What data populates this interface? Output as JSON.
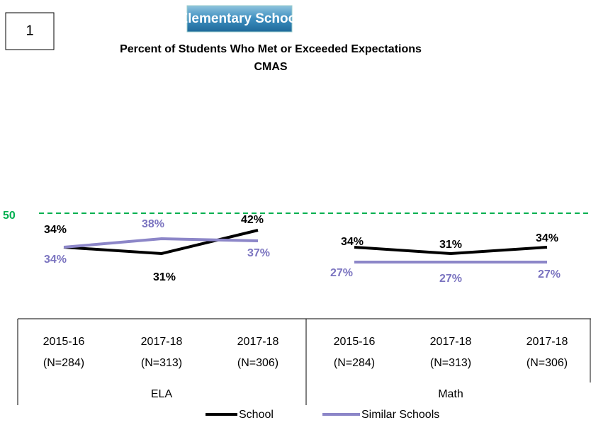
{
  "chart_data": {
    "type": "line",
    "badge": "1",
    "title": "Elementary School",
    "subtitle": "Percent of Students Who Met or Exceeded Expectations",
    "subtitle2": "CMAS",
    "ylim": [
      0,
      100
    ],
    "reference_line": {
      "value": 50,
      "label": "50",
      "color": "#00b050"
    },
    "groups": [
      {
        "name": "ELA",
        "categories": [
          [
            "2015-16",
            "(N=284)"
          ],
          [
            "2017-18",
            "(N=313)"
          ],
          [
            "2017-18",
            "(N=306)"
          ]
        ]
      },
      {
        "name": "Math",
        "categories": [
          [
            "2015-16",
            "(N=284)"
          ],
          [
            "2017-18",
            "(N=313)"
          ],
          [
            "2017-18",
            "(N=306)"
          ]
        ]
      }
    ],
    "series": [
      {
        "name": "School",
        "color": "#000000",
        "values": [
          [
            34,
            31,
            42
          ],
          [
            34,
            31,
            34
          ]
        ],
        "value_labels": [
          [
            "34%",
            "31%",
            "42%"
          ],
          [
            "34%",
            "31%",
            "34%"
          ]
        ]
      },
      {
        "name": "Similar Schools",
        "color": "#8c86c8",
        "values": [
          [
            34,
            38,
            37
          ],
          [
            27,
            27,
            27
          ]
        ],
        "value_labels": [
          [
            "34%",
            "38%",
            "37%"
          ],
          [
            "27%",
            "27%",
            "27%"
          ]
        ]
      }
    ]
  }
}
